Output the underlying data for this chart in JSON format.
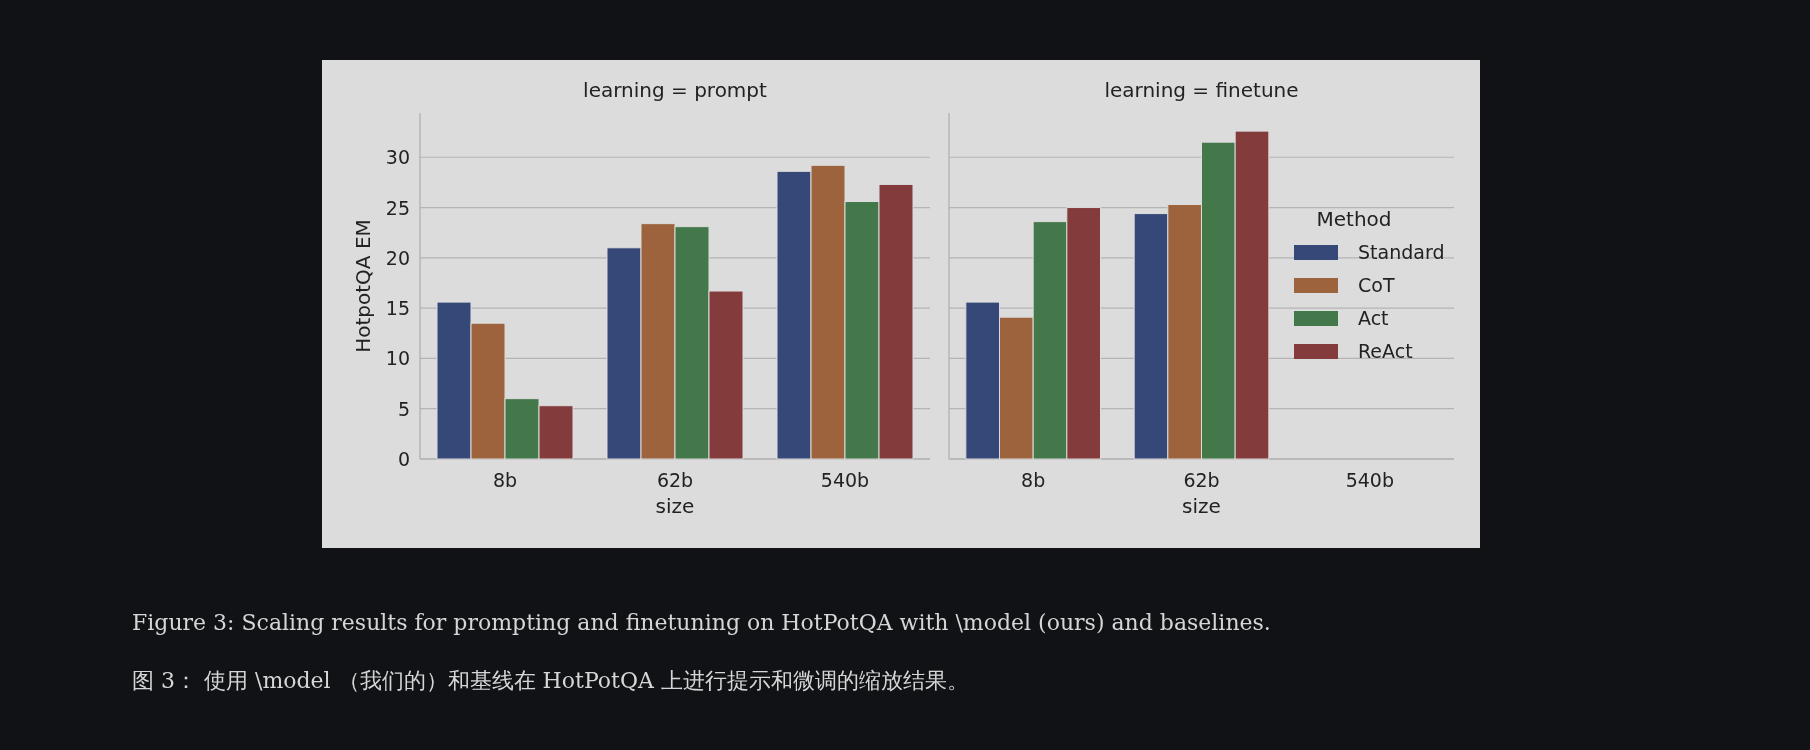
{
  "chart_data": [
    {
      "type": "bar",
      "title": "learning = prompt",
      "xlabel": "size",
      "ylabel": "HotpotQA EM",
      "categories": [
        "8b",
        "62b",
        "540b"
      ],
      "series": [
        {
          "color": "#364878",
          "values": [
            15.6,
            21.0,
            28.6
          ]
        },
        {
          "color": "#9c633c",
          "values": [
            13.5,
            23.4,
            29.2
          ]
        },
        {
          "color": "#43784a",
          "values": [
            6.0,
            23.1,
            25.6
          ]
        },
        {
          "color": "#843b3c",
          "values": [
            5.3,
            16.7,
            27.3
          ]
        }
      ],
      "ylim": [
        0,
        34.4
      ],
      "yticks": [
        0,
        5,
        10,
        15,
        20,
        25,
        30
      ],
      "grid": "y",
      "annotations": [
        "Figure 3: Scaling results for prompting and finetuning on HotPotQA with \\model (ours) and baselines.",
        "图 3：  使用 \\model （我们的）和基线在 HotPotQA 上进行提示和微调的缩放结果。"
      ]
    },
    {
      "type": "bar",
      "title": "learning = finetune",
      "xlabel": "size",
      "categories": [
        "8b",
        "62b",
        "540b"
      ],
      "series": [
        {
          "name": "Standard",
          "color": "#364878",
          "values": [
            15.6,
            24.4,
            null
          ]
        },
        {
          "name": "CoT",
          "color": "#9c633c",
          "values": [
            14.1,
            25.3,
            null
          ]
        },
        {
          "name": "Act",
          "color": "#43784a",
          "values": [
            23.6,
            31.5,
            null
          ]
        },
        {
          "name": "ReAct",
          "color": "#843b3c",
          "values": [
            25.0,
            32.6,
            null
          ]
        }
      ],
      "ylim": [
        0,
        34.4
      ],
      "yticks": [
        0,
        5,
        10,
        15,
        20,
        25,
        30
      ],
      "grid": "y",
      "tick_labels": "x",
      "legend": "right",
      "legend_title": "Method"
    }
  ]
}
